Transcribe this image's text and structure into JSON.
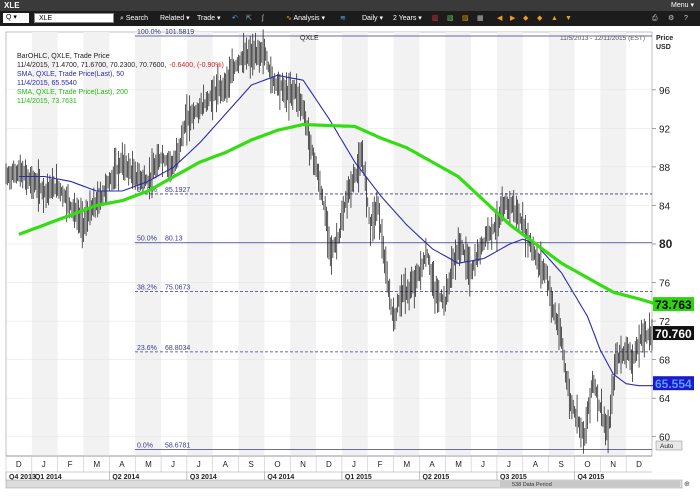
{
  "window": {
    "title": "XLE",
    "menu_label": "Menu"
  },
  "toolbar": {
    "q_label": "Q",
    "symbol_value": "XLE",
    "search_label": "Search",
    "related_label": "Related",
    "trade_label": "Trade",
    "analysis_label": "Analysis",
    "interval_label": "Daily",
    "range_label": "2 Years"
  },
  "chart_header": {
    "symbol": "QXLE",
    "date_range": "11/5/2013 - 12/11/2015 (EST)",
    "price_label_1": "Price",
    "price_label_2": "USD",
    "auto_label": "Auto",
    "data_period": "538 Data Period"
  },
  "legend": {
    "line1": "BarOHLC, QXLE, Trade Price",
    "line2_values": "11/4/2015, 71.4700, 71.6700, 70.2300, 70.7600,",
    "line2_change": "-0.6400, (-0.90%)",
    "line3": "SMA, QXLE, Trade Price(Last), 50",
    "line4": "11/4/2015, 65.5540",
    "line5": "SMA, QXLE, Trade Price(Last), 200",
    "line6": "11/4/2015, 73.7631"
  },
  "colors": {
    "price_bars": "#111111",
    "sma50": "#2b2bb0",
    "sma200": "#33dd11",
    "fib_lines": "#3a3a8a",
    "last_price_box": "#111111",
    "sma50_box": "#1a1acc",
    "sma200_box": "#2bd40f",
    "change_text": "#cc2222"
  },
  "chart_data": {
    "type": "line",
    "title": "QXLE",
    "x_range": [
      "2013-11-05",
      "2015-12-11"
    ],
    "ylim": [
      58,
      102
    ],
    "y_ticks": [
      60,
      64,
      68,
      72,
      76,
      80,
      84,
      88,
      92,
      96
    ],
    "y_ticks_bold": [
      80
    ],
    "month_labels": [
      "D",
      "J",
      "F",
      "M",
      "A",
      "M",
      "J",
      "J",
      "A",
      "S",
      "O",
      "N",
      "D",
      "J",
      "F",
      "M",
      "A",
      "M",
      "J",
      "J",
      "A",
      "S",
      "O",
      "N",
      "D"
    ],
    "quarter_labels": [
      "Q4 2013",
      "Q1 2014",
      "Q2 2014",
      "Q3 2014",
      "Q4 2014",
      "Q1 2015",
      "Q2 2015",
      "Q3 2015",
      "Q4 2015"
    ],
    "fib_levels": [
      {
        "pct": "100.0%",
        "value": "101.5819",
        "y": 101.5819
      },
      {
        "pct": "61.8%",
        "value": "85.1927",
        "y": 85.1927
      },
      {
        "pct": "50.0%",
        "value": "80.13",
        "y": 80.13
      },
      {
        "pct": "38.2%",
        "value": "75.0673",
        "y": 75.0673
      },
      {
        "pct": "23.6%",
        "value": "68.8034",
        "y": 68.8034
      },
      {
        "pct": "0.0%",
        "value": "58.6781",
        "y": 58.6781
      }
    ],
    "last_price": "70.760",
    "last_price_value": 70.76,
    "sma200_last": "73.763",
    "sma200_last_value": 73.763,
    "sma50_last": "65.554",
    "sma50_last_value": 65.554,
    "series": [
      {
        "name": "BarOHLC, QXLE, Trade Price",
        "x": [
          0,
          0.5,
          1,
          1.5,
          2,
          2.5,
          3,
          3.3,
          3.7,
          4,
          4.5,
          5,
          5.5,
          6,
          6.5,
          7,
          7.5,
          8,
          8.5,
          9,
          9.3,
          9.6,
          10,
          10.3,
          10.6,
          10.9,
          11.2,
          11.5,
          11.8,
          12,
          12.3,
          12.6,
          12.9,
          13.2,
          13.5,
          13.8,
          14.1,
          14.4,
          14.7,
          15,
          15.3,
          15.6,
          16,
          16.3,
          16.6,
          17,
          17.3,
          17.6,
          18,
          18.3,
          18.6,
          19,
          19.3,
          19.6,
          20,
          20.3,
          20.6,
          20.9,
          21.2,
          21.5,
          21.8,
          22.1,
          22.4,
          22.7,
          23,
          23.3,
          23.6,
          24,
          24.3,
          24.6,
          25
        ],
        "values": [
          87,
          87.5,
          86.5,
          85.5,
          86,
          84,
          82,
          83.5,
          85,
          86.5,
          88.5,
          87,
          86.5,
          89,
          88,
          93,
          94,
          95.5,
          96.5,
          99,
          99.5,
          99.5,
          100,
          97,
          96.5,
          95.5,
          96,
          94,
          90,
          88,
          84,
          79,
          81,
          85,
          87,
          89,
          82,
          84,
          77,
          72,
          75,
          75,
          77,
          79,
          75,
          74,
          78,
          80,
          77,
          79,
          81,
          82,
          84,
          84,
          82,
          80,
          78,
          77,
          73,
          70,
          64,
          62,
          60,
          66,
          63,
          60,
          68,
          69,
          68,
          70.5,
          70.76
        ]
      },
      {
        "name": "SMA, QXLE, Trade Price(Last), 50",
        "x": [
          0,
          1,
          2,
          3,
          4,
          5,
          6,
          7,
          8,
          9,
          10,
          11,
          12,
          13,
          14,
          15,
          16,
          17,
          18,
          19,
          19.5,
          20,
          21,
          22,
          22.5,
          23,
          23.5,
          24,
          24.5,
          25
        ],
        "values": [
          87,
          87,
          86.5,
          85.5,
          85.5,
          86.5,
          88,
          90.5,
          93.5,
          96.5,
          97.5,
          97,
          93,
          88.5,
          85,
          82,
          79.5,
          78,
          78.5,
          80,
          80.5,
          80,
          77,
          72.5,
          69,
          66.5,
          65.5,
          65.3,
          65.3,
          65.6
        ]
      },
      {
        "name": "SMA, QXLE, Trade Price(Last), 200",
        "x": [
          0,
          1,
          2,
          3,
          4,
          5,
          6,
          7,
          8,
          9,
          10,
          11,
          12,
          13,
          14,
          15,
          16,
          17,
          18,
          19,
          20,
          21,
          22,
          23,
          24,
          24.5,
          25
        ],
        "values": [
          81,
          82,
          83,
          84,
          84.5,
          85.5,
          87,
          88.5,
          89.5,
          90.8,
          91.8,
          92.4,
          92.3,
          92.2,
          91,
          90,
          88.5,
          87,
          84.5,
          82,
          80,
          78,
          76.5,
          75,
          74.3,
          73.9,
          73.763
        ]
      }
    ]
  }
}
